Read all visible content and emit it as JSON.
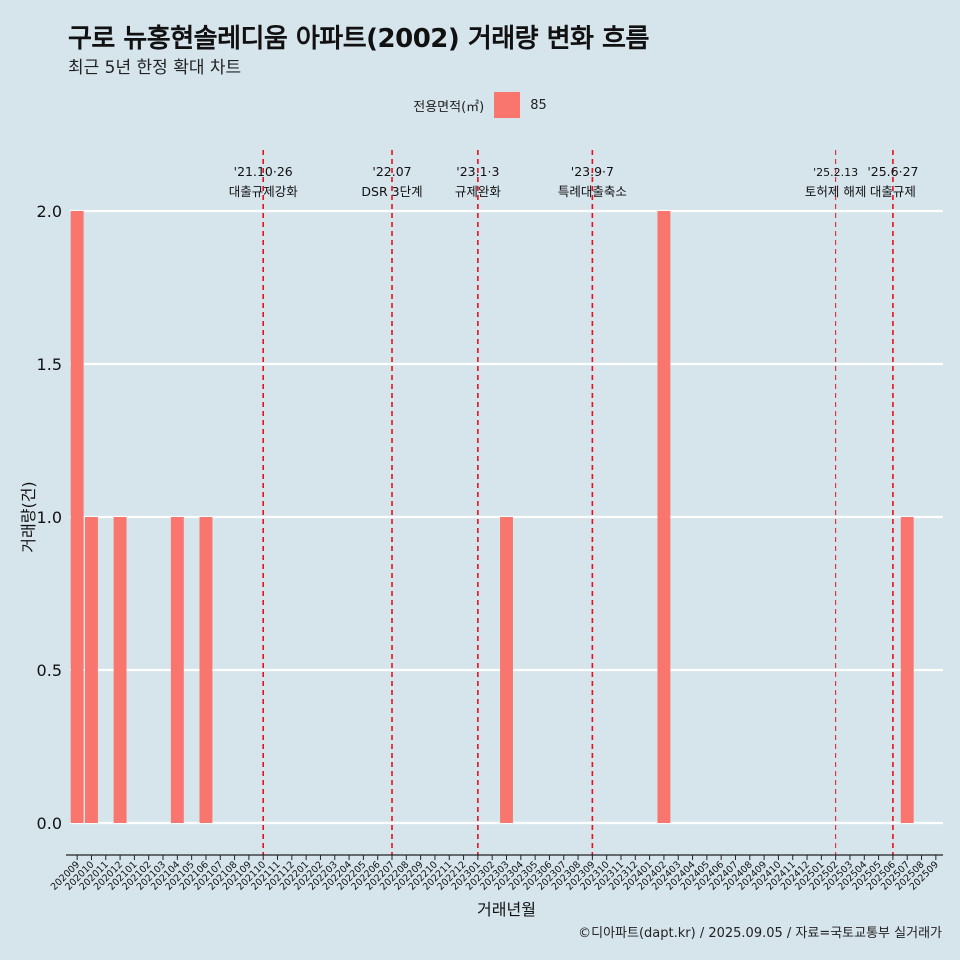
{
  "header": {
    "title": "구로 뉴홍현솔레디움 아파트(2002) 거래량 변화 흐름",
    "subtitle": "최근 5년 한정 확대 차트"
  },
  "legend": {
    "title": "전용면적(㎡)",
    "items": [
      {
        "label": "85",
        "color": "#f8766d"
      }
    ]
  },
  "caption": "©디아파트(dapt.kr) / 2025.09.05 / 자료=국토교통부 실거래가",
  "chart_data": {
    "type": "bar",
    "title": "구로 뉴홍현솔레디움 아파트(2002) 거래량 변화 흐름",
    "subtitle": "최근 5년 한정 확대 차트",
    "xlabel": "거래년월",
    "ylabel": "거래량(건)",
    "ylim": [
      0,
      2
    ],
    "yticks": [
      "0.0",
      "0.5",
      "1.0",
      "1.5",
      "2.0"
    ],
    "grid": true,
    "legend_position": "top",
    "categories": [
      "202009",
      "202010",
      "202011",
      "202012",
      "202101",
      "202102",
      "202103",
      "202104",
      "202105",
      "202106",
      "202107",
      "202108",
      "202109",
      "202110",
      "202111",
      "202112",
      "202201",
      "202202",
      "202203",
      "202204",
      "202205",
      "202206",
      "202207",
      "202208",
      "202209",
      "202210",
      "202211",
      "202212",
      "202301",
      "202302",
      "202303",
      "202304",
      "202305",
      "202306",
      "202307",
      "202308",
      "202309",
      "202310",
      "202311",
      "202312",
      "202401",
      "202402",
      "202403",
      "202404",
      "202405",
      "202406",
      "202407",
      "202408",
      "202409",
      "202410",
      "202411",
      "202412",
      "202501",
      "202502",
      "202503",
      "202504",
      "202505",
      "202506",
      "202507",
      "202508",
      "202509"
    ],
    "series": [
      {
        "name": "85",
        "color": "#f8766d",
        "values": [
          2,
          1,
          0,
          1,
          0,
          0,
          0,
          1,
          0,
          1,
          0,
          0,
          0,
          0,
          0,
          0,
          0,
          0,
          0,
          0,
          0,
          0,
          0,
          0,
          0,
          0,
          0,
          0,
          0,
          0,
          1,
          0,
          0,
          0,
          0,
          0,
          0,
          0,
          0,
          0,
          0,
          2,
          0,
          0,
          0,
          0,
          0,
          0,
          0,
          0,
          0,
          0,
          0,
          0,
          0,
          0,
          0,
          0,
          1,
          0,
          0
        ]
      }
    ],
    "annotations": [
      {
        "month": "202110",
        "date": "'21.10·26",
        "label": "대출규제강화"
      },
      {
        "month": "202207",
        "date": "'22.07",
        "label": "DSR 3단계"
      },
      {
        "month": "202301",
        "date": "'23.1·3",
        "label": "규제완화"
      },
      {
        "month": "202309",
        "date": "'23.9·7",
        "label": "특례대출축소"
      },
      {
        "month": "202502",
        "date": "'25.2.13",
        "label": "토허제 해제"
      },
      {
        "month": "202506",
        "date": "'25.6·27",
        "label": "대출규제"
      }
    ]
  }
}
